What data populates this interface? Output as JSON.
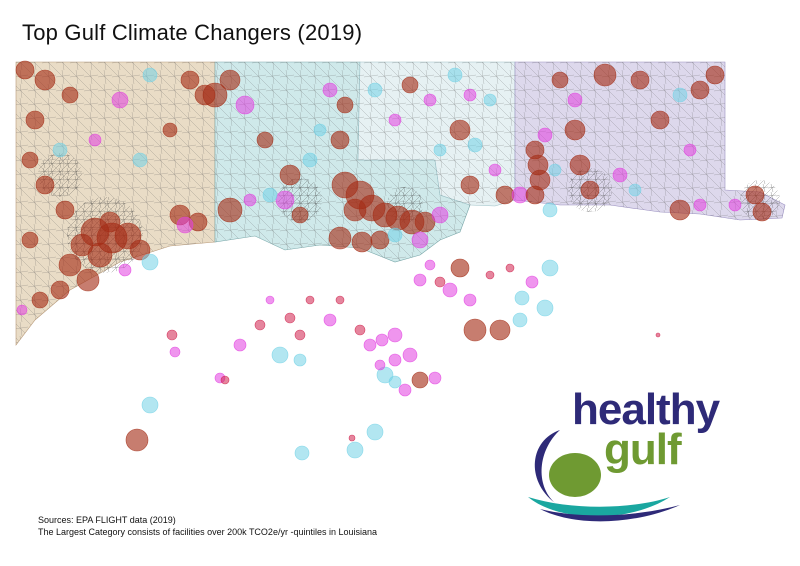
{
  "title": "Top Gulf Climate Changers (2019)",
  "sources": {
    "line1": "Sources: EPA FLIGHT data (2019)",
    "line2": "The Largest Category consists of facilities over 200k TCO2e/yr -quintiles in Louisiana"
  },
  "logo": {
    "word1": "healthy",
    "word2": "gulf"
  },
  "colors": {
    "texas_fill": "#e9dcc6",
    "louisiana_fill": "#cfe9ea",
    "mississippi_fill": "#e6f1f3",
    "alabama_florida_fill": "#ddd8ec",
    "largest_category": "#a42d17",
    "magenta": "#e23ee0",
    "cyan": "#72d2e6",
    "crimson": "#d0204c",
    "logo_navy": "#2e2a78",
    "logo_green": "#6f9a32",
    "logo_teal": "#1aa7a0"
  }
}
